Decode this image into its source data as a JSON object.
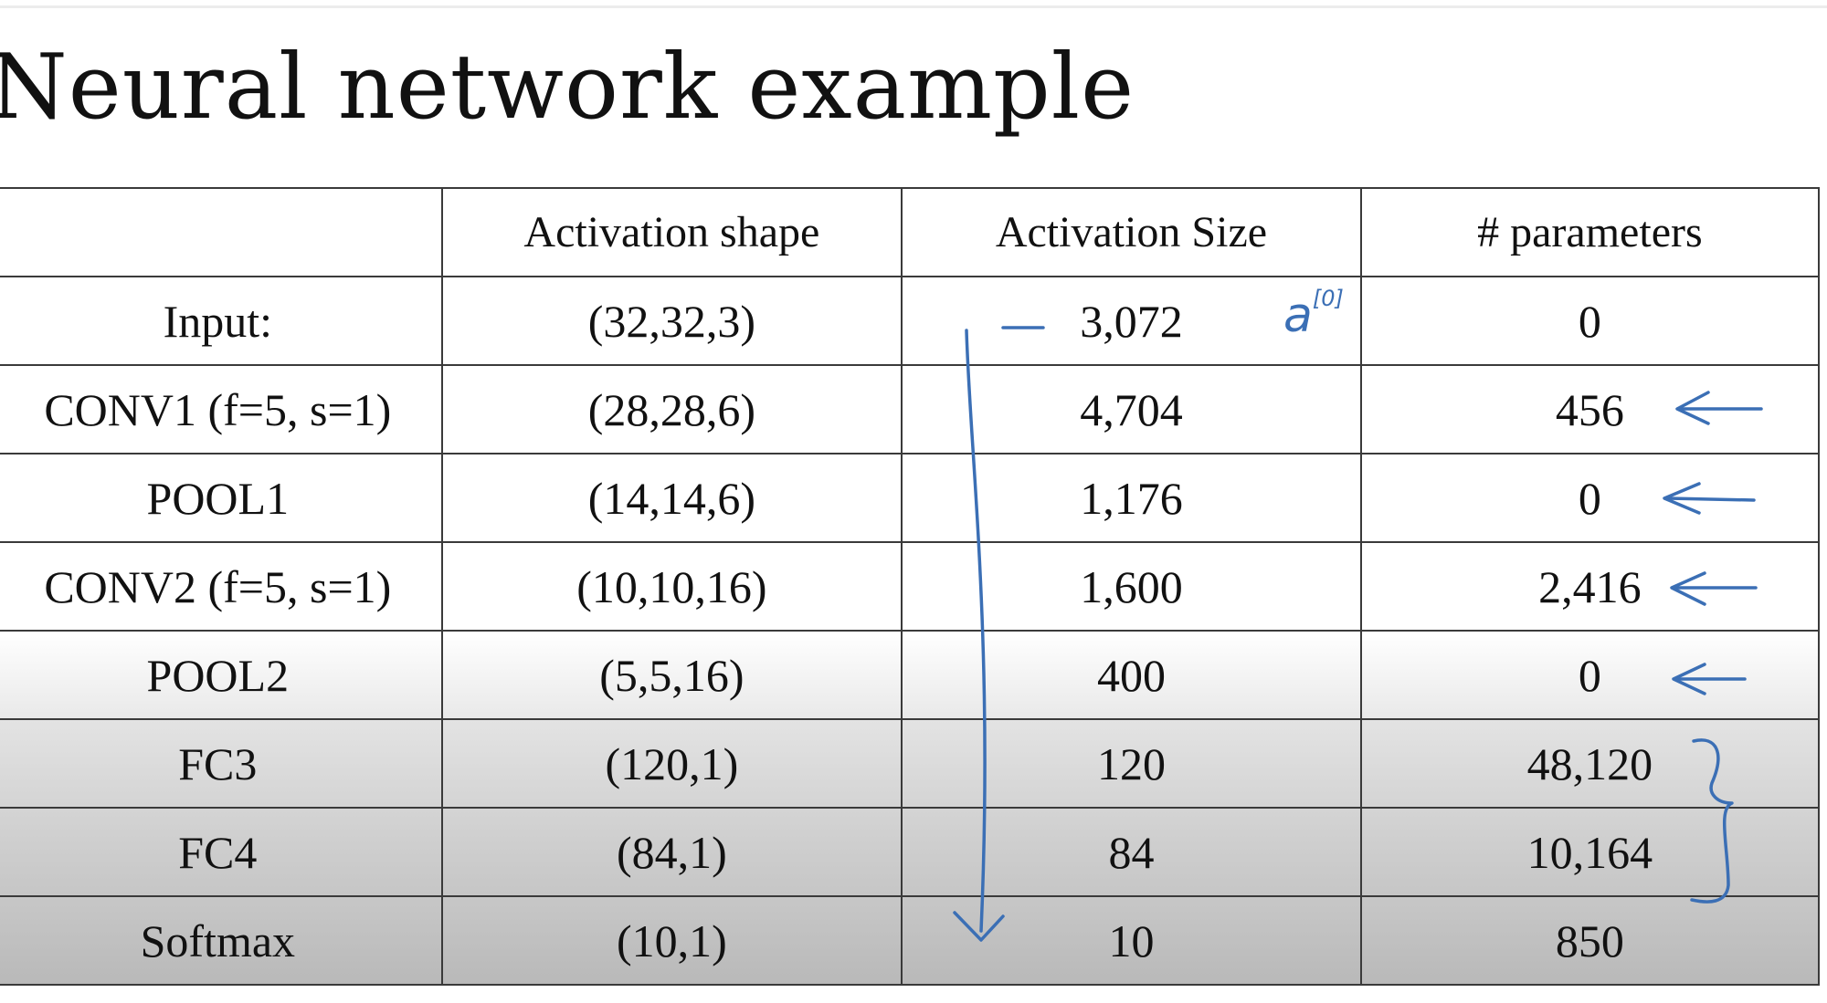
{
  "title": "Neural network example",
  "table": {
    "headers": [
      "",
      "Activation shape",
      "Activation Size",
      "# parameters"
    ],
    "rows": [
      {
        "layer": "Input:",
        "shape": "(32,32,3)",
        "size": "3,072",
        "params": "0"
      },
      {
        "layer": "CONV1 (f=5, s=1)",
        "shape": "(28,28,6)",
        "size": "4,704",
        "params": "456"
      },
      {
        "layer": "POOL1",
        "shape": "(14,14,6)",
        "size": "1,176",
        "params": "0"
      },
      {
        "layer": "CONV2  (f=5, s=1)",
        "shape": "(10,10,16)",
        "size": "1,600",
        "params": "2,416"
      },
      {
        "layer": "POOL2",
        "shape": "(5,5,16)",
        "size": "400",
        "params": "0"
      },
      {
        "layer": "FC3",
        "shape": "(120,1)",
        "size": "120",
        "params": "48,120"
      },
      {
        "layer": "FC4",
        "shape": "(84,1)",
        "size": "84",
        "params": "10,164"
      },
      {
        "layer": "Softmax",
        "shape": "(10,1)",
        "size": "10",
        "params": "850"
      }
    ]
  },
  "annotations": {
    "input_note": "a",
    "input_note_sup": "[0]",
    "ink_color": "#3b6fb5"
  }
}
